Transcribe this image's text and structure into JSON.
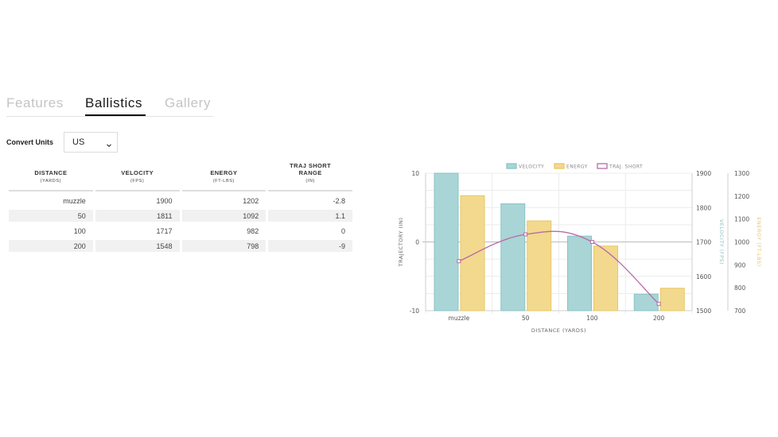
{
  "tabs": [
    {
      "label": "Features"
    },
    {
      "label": "Ballistics"
    },
    {
      "label": "Gallery"
    }
  ],
  "convert": {
    "label": "Convert Units",
    "selected": "US"
  },
  "table": {
    "headers": [
      {
        "title": "DISTANCE",
        "sub": "(YARDS)"
      },
      {
        "title": "VELOCITY",
        "sub": "(FPS)"
      },
      {
        "title": "ENERGY",
        "sub": "(FT-LBS)"
      },
      {
        "title": "TRAJ SHORT RANGE",
        "sub": "(IN)"
      }
    ],
    "rows": [
      [
        "muzzle",
        "1900",
        "1202",
        "-2.8"
      ],
      [
        "50",
        "1811",
        "1092",
        "1.1"
      ],
      [
        "100",
        "1717",
        "982",
        "0"
      ],
      [
        "200",
        "1548",
        "798",
        "-9"
      ]
    ]
  },
  "colors": {
    "velocity": "#a9d5d6",
    "velocity_border": "#8cc3c5",
    "energy": "#f2d98e",
    "energy_border": "#e8c766",
    "traj": "#b86ba6"
  },
  "chart_data": {
    "type": "bar",
    "categories": [
      "muzzle",
      "50",
      "100",
      "200"
    ],
    "xlabel": "DISTANCE (YARDS)",
    "legend_position": "top",
    "grid": true,
    "series": [
      {
        "name": "VELOCITY",
        "type": "bar",
        "axis": "VELOCITY (FPS)",
        "values": [
          1900,
          1811,
          1717,
          1548
        ]
      },
      {
        "name": "ENERGY",
        "type": "bar",
        "axis": "ENERGY (FT-LBS)",
        "values": [
          1202,
          1092,
          982,
          798
        ]
      },
      {
        "name": "TRAJ. SHORT",
        "type": "line",
        "axis": "TRAJECTORY (IN)",
        "values": [
          -2.8,
          1.1,
          0,
          -9
        ]
      }
    ],
    "axes": {
      "traj": {
        "label": "TRAJECTORY (IN)",
        "ticks": [
          "10",
          "0",
          "-10"
        ],
        "range": [
          -10,
          10
        ]
      },
      "velocity": {
        "label": "VELOCITY (FPS)",
        "ticks": [
          "1900",
          "1800",
          "1700",
          "1600",
          "1500"
        ],
        "range": [
          1500,
          1900
        ]
      },
      "energy": {
        "label": "ENERGY (FT-LBS)",
        "ticks": [
          "1300",
          "1200",
          "1100",
          "1000",
          "900",
          "800",
          "700"
        ],
        "range": [
          700,
          1300
        ]
      }
    }
  }
}
